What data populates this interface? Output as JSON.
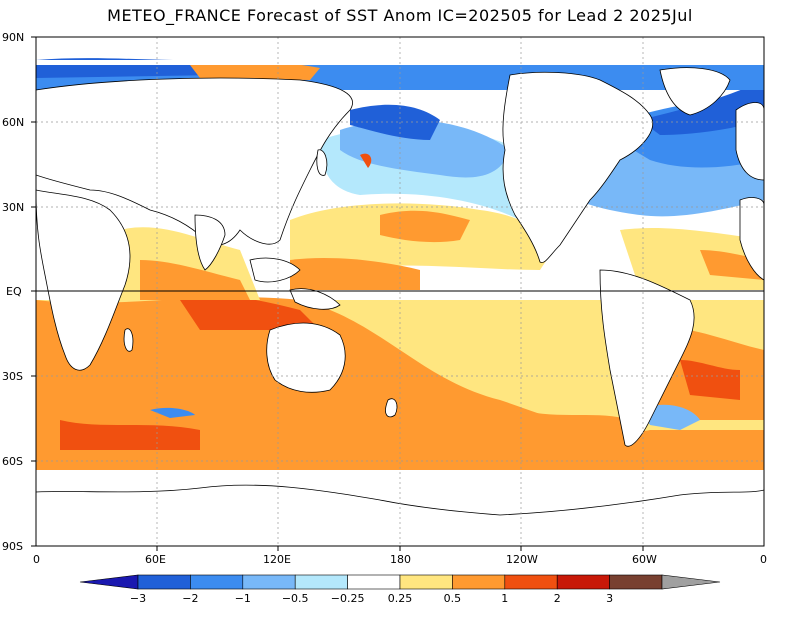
{
  "title": "METEO_FRANCE Forecast of SST Anom IC=202505 for Lead 2 2025Jul",
  "lat_ticks": [
    "90N",
    "60N",
    "30N",
    "EQ",
    "30S",
    "60S",
    "90S"
  ],
  "lon_ticks": [
    "0",
    "60E",
    "120E",
    "180",
    "120W",
    "60W",
    "0"
  ],
  "colorbar": {
    "labels": [
      "-3",
      "-2",
      "-1",
      "-0.5",
      "-0.25",
      "0.25",
      "0.5",
      "1",
      "2",
      "3"
    ],
    "colors": [
      "#1a18b0",
      "#2060d8",
      "#3c8cf0",
      "#78b8f8",
      "#b4e8fc",
      "#ffffff",
      "#ffe680",
      "#ff9a30",
      "#f05010",
      "#c81808",
      "#784030",
      "#a0a0a0"
    ]
  },
  "map_colors": {
    "land": "#ffffff",
    "coast": "#000000",
    "grid": "#999999"
  }
}
